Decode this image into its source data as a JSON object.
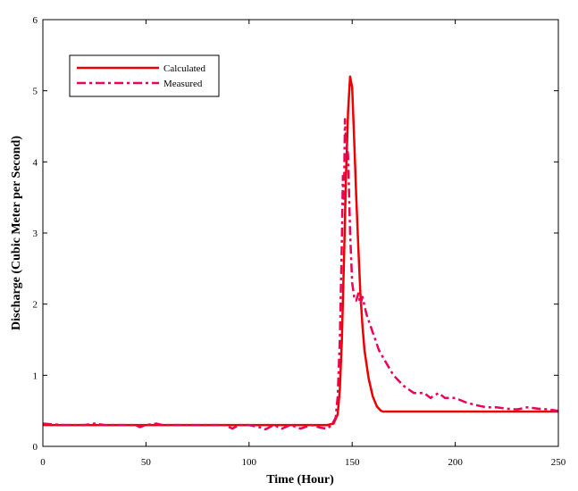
{
  "chart_data": {
    "type": "line",
    "title": "",
    "xlabel": "Time (Hour)",
    "ylabel": "Discharge (Cubic Meter per Second)",
    "xlim": [
      0,
      250
    ],
    "ylim": [
      0,
      6
    ],
    "xticks": [
      0,
      50,
      100,
      150,
      200,
      250
    ],
    "yticks": [
      0,
      1,
      2,
      3,
      4,
      5,
      6
    ],
    "grid": false,
    "legend_position": "top-left",
    "series": [
      {
        "name": "Calculated",
        "style": "solid",
        "color": "#ee0000",
        "x": [
          0,
          20,
          40,
          60,
          80,
          100,
          120,
          138,
          141,
          143,
          144,
          145,
          146,
          147,
          148,
          149,
          150,
          151,
          152,
          153,
          154,
          155,
          156,
          158,
          160,
          162,
          164,
          165,
          170,
          180,
          200,
          220,
          250
        ],
        "y": [
          0.3,
          0.3,
          0.3,
          0.3,
          0.3,
          0.3,
          0.3,
          0.3,
          0.32,
          0.45,
          0.8,
          1.5,
          2.6,
          3.8,
          4.7,
          5.2,
          5.05,
          4.3,
          3.5,
          2.8,
          2.15,
          1.7,
          1.35,
          0.95,
          0.7,
          0.56,
          0.5,
          0.49,
          0.49,
          0.49,
          0.49,
          0.49,
          0.49
        ]
      },
      {
        "name": "Measured",
        "style": "dash-dot",
        "color": "#ee0055",
        "x": [
          0,
          10,
          20,
          25,
          30,
          40,
          45,
          47,
          50,
          55,
          58,
          60,
          70,
          80,
          88,
          92,
          95,
          100,
          105,
          108,
          112,
          116,
          120,
          125,
          130,
          135,
          138,
          140,
          142,
          143,
          144,
          145,
          145.5,
          146,
          146.5,
          147,
          148,
          149,
          150,
          151,
          152,
          153,
          154,
          155,
          157,
          160,
          163,
          166,
          170,
          175,
          180,
          185,
          188,
          190,
          192,
          195,
          200,
          205,
          210,
          215,
          220,
          225,
          230,
          235,
          240,
          245,
          250
        ],
        "y": [
          0.32,
          0.3,
          0.3,
          0.32,
          0.3,
          0.3,
          0.3,
          0.27,
          0.3,
          0.32,
          0.3,
          0.3,
          0.3,
          0.3,
          0.3,
          0.25,
          0.3,
          0.3,
          0.27,
          0.24,
          0.3,
          0.25,
          0.3,
          0.25,
          0.3,
          0.26,
          0.25,
          0.3,
          0.4,
          0.7,
          1.5,
          2.9,
          3.8,
          3.4,
          4.6,
          4.3,
          4.1,
          3.0,
          2.3,
          2.1,
          2.05,
          2.15,
          2.0,
          2.1,
          1.85,
          1.6,
          1.35,
          1.2,
          1.0,
          0.85,
          0.75,
          0.75,
          0.68,
          0.72,
          0.75,
          0.68,
          0.68,
          0.62,
          0.58,
          0.55,
          0.55,
          0.53,
          0.52,
          0.55,
          0.53,
          0.52,
          0.5
        ]
      }
    ]
  }
}
